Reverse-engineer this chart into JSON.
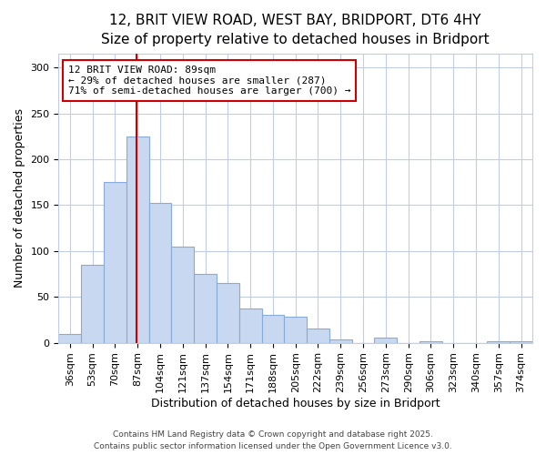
{
  "title_line1": "12, BRIT VIEW ROAD, WEST BAY, BRIDPORT, DT6 4HY",
  "title_line2": "Size of property relative to detached houses in Bridport",
  "xlabel": "Distribution of detached houses by size in Bridport",
  "ylabel": "Number of detached properties",
  "categories": [
    "36sqm",
    "53sqm",
    "70sqm",
    "87sqm",
    "104sqm",
    "121sqm",
    "137sqm",
    "154sqm",
    "171sqm",
    "188sqm",
    "205sqm",
    "222sqm",
    "239sqm",
    "256sqm",
    "273sqm",
    "290sqm",
    "306sqm",
    "323sqm",
    "340sqm",
    "357sqm",
    "374sqm"
  ],
  "values": [
    10,
    85,
    175,
    225,
    152,
    105,
    75,
    65,
    37,
    30,
    28,
    15,
    4,
    0,
    6,
    0,
    2,
    0,
    0,
    2,
    2
  ],
  "bar_color": "#c8d8f0",
  "bar_edge_color": "#88aad8",
  "bar_edge_width": 0.8,
  "vline_x": 2.95,
  "vline_color": "#cc0000",
  "annotation_line1": "12 BRIT VIEW ROAD: 89sqm",
  "annotation_line2": "← 29% of detached houses are smaller (287)",
  "annotation_line3": "71% of semi-detached houses are larger (700) →",
  "annotation_box_color": "#ffffff",
  "annotation_box_edge_color": "#cc0000",
  "footer_line1": "Contains HM Land Registry data © Crown copyright and database right 2025.",
  "footer_line2": "Contains public sector information licensed under the Open Government Licence v3.0.",
  "background_color": "#ffffff",
  "plot_bg_color": "#ffffff",
  "ylim": [
    0,
    315
  ],
  "yticks": [
    0,
    50,
    100,
    150,
    200,
    250,
    300
  ],
  "grid_color": "#c0cce8",
  "title_fontsize": 11,
  "subtitle_fontsize": 10,
  "axis_label_fontsize": 9,
  "tick_fontsize": 8,
  "annotation_fontsize": 8,
  "footer_fontsize": 6.5
}
